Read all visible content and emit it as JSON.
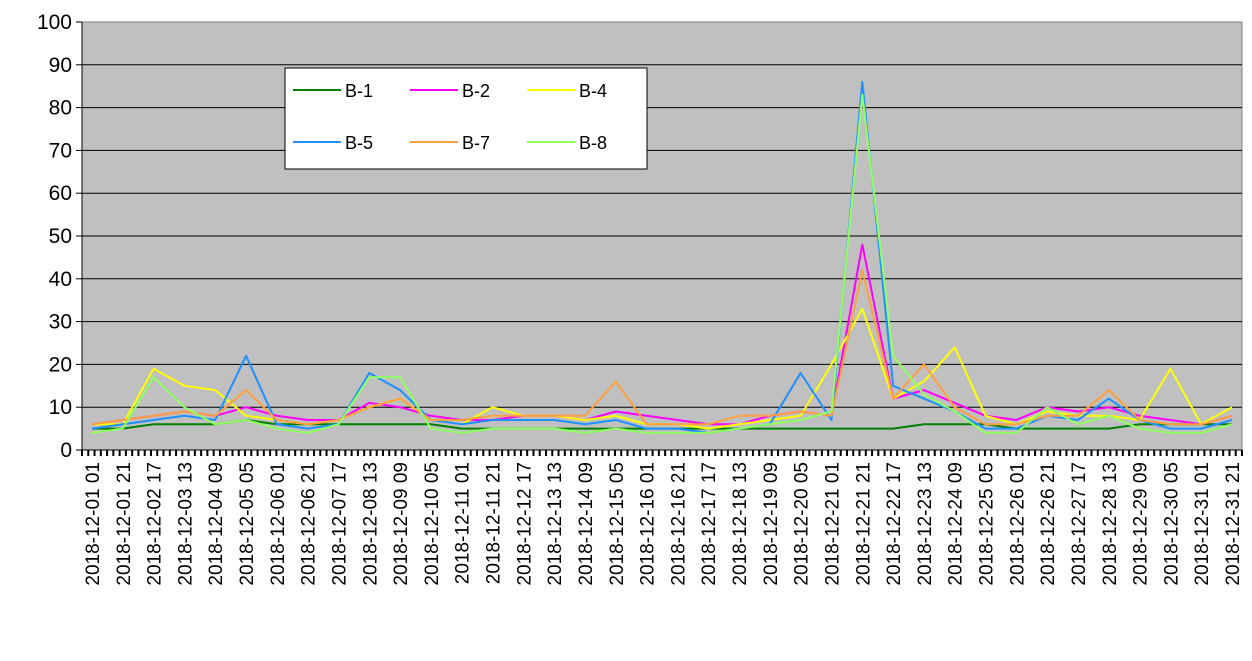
{
  "chart_data": {
    "type": "line",
    "title": "",
    "xlabel": "",
    "ylabel": "",
    "ylim": [
      0,
      100
    ],
    "yticks": [
      0,
      10,
      20,
      30,
      40,
      50,
      60,
      70,
      80,
      90,
      100
    ],
    "grid": true,
    "legend_position": "top-left",
    "plot_background": "#C0C0C0",
    "x_tick_labels": [
      "2018-12-01 01",
      "2018-12-01 21",
      "2018-12-02 17",
      "2018-12-03 13",
      "2018-12-04 09",
      "2018-12-05 05",
      "2018-12-06 01",
      "2018-12-06 21",
      "2018-12-07 17",
      "2018-12-08 13",
      "2018-12-09 09",
      "2018-12-10 05",
      "2018-12-11 01",
      "2018-12-11 21",
      "2018-12-12 17",
      "2018-12-13 13",
      "2018-12-14 09",
      "2018-12-15 05",
      "2018-12-16 01",
      "2018-12-16 21",
      "2018-12-17 17",
      "2018-12-18 13",
      "2018-12-19 09",
      "2018-12-20 05",
      "2018-12-21 01",
      "2018-12-21 21",
      "2018-12-22 17",
      "2018-12-23 13",
      "2018-12-24 09",
      "2018-12-25 05",
      "2018-12-26 01",
      "2018-12-26 21",
      "2018-12-27 17",
      "2018-12-28 13",
      "2018-12-29 09",
      "2018-12-30 05",
      "2018-12-31 01",
      "2018-12-31 21"
    ],
    "series": [
      {
        "name": "B-1",
        "color": "#008000",
        "values": [
          5,
          5,
          6,
          6,
          6,
          7,
          6,
          6,
          6,
          6,
          6,
          6,
          5,
          5,
          5,
          5,
          5,
          5,
          5,
          5,
          5,
          5,
          5,
          5,
          5,
          5,
          5,
          6,
          6,
          6,
          5,
          5,
          5,
          5,
          6,
          6,
          6,
          6
        ]
      },
      {
        "name": "B-2",
        "color": "#FF00FF",
        "values": [
          6,
          7,
          8,
          9,
          8,
          10,
          8,
          7,
          7,
          11,
          10,
          8,
          7,
          7,
          8,
          8,
          7,
          9,
          8,
          7,
          6,
          6,
          8,
          9,
          8,
          48,
          12,
          14,
          11,
          8,
          7,
          10,
          9,
          10,
          8,
          7,
          6,
          8
        ]
      },
      {
        "name": "B-4",
        "color": "#FFFF00",
        "values": [
          6,
          6,
          19,
          15,
          14,
          8,
          7,
          6,
          7,
          10,
          12,
          7,
          6,
          10,
          8,
          8,
          7,
          8,
          6,
          6,
          5,
          6,
          7,
          8,
          20,
          33,
          12,
          16,
          24,
          8,
          6,
          9,
          8,
          8,
          7,
          19,
          6,
          10
        ]
      },
      {
        "name": "B-5",
        "color": "#1E90FF",
        "values": [
          5,
          6,
          7,
          8,
          7,
          22,
          6,
          5,
          6,
          18,
          14,
          7,
          6,
          7,
          7,
          7,
          6,
          7,
          5,
          5,
          4,
          5,
          6,
          18,
          7,
          86,
          15,
          12,
          9,
          5,
          5,
          8,
          7,
          12,
          7,
          5,
          5,
          7
        ]
      },
      {
        "name": "B-7",
        "color": "#FFA040",
        "values": [
          6,
          7,
          8,
          9,
          8,
          14,
          7,
          6,
          7,
          10,
          12,
          7,
          7,
          8,
          8,
          8,
          8,
          16,
          6,
          6,
          6,
          8,
          8,
          9,
          8,
          42,
          12,
          20,
          10,
          6,
          6,
          8,
          8,
          14,
          7,
          6,
          6,
          8
        ]
      },
      {
        "name": "B-8",
        "color": "#90FF60",
        "values": [
          4,
          5,
          17,
          10,
          6,
          7,
          5,
          4,
          6,
          17,
          17,
          5,
          4,
          5,
          5,
          5,
          4,
          5,
          4,
          4,
          4,
          5,
          6,
          7,
          9,
          83,
          22,
          13,
          9,
          4,
          4,
          10,
          6,
          8,
          5,
          4,
          4,
          6
        ]
      }
    ]
  }
}
